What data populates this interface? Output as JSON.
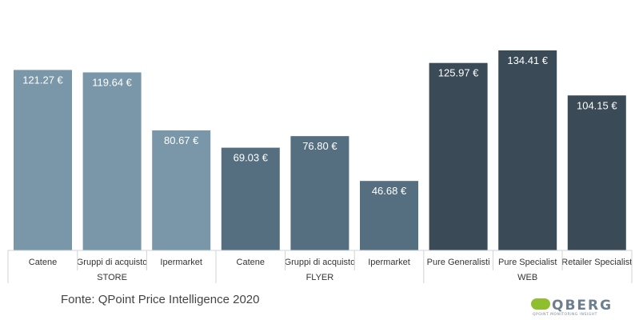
{
  "chart_data": {
    "type": "bar",
    "groups": [
      {
        "name": "STORE",
        "color": "#7a97a9",
        "categories": [
          "Catene",
          "Gruppi di acquisto",
          "Ipermarket"
        ],
        "values": [
          121.27,
          119.64,
          80.67
        ],
        "labels": [
          "121.27 €",
          "119.64 €",
          "80.67 €"
        ]
      },
      {
        "name": "FLYER",
        "color": "#566f80",
        "categories": [
          "Catene",
          "Gruppi di acquisto",
          "Ipermarket"
        ],
        "values": [
          69.03,
          76.8,
          46.68
        ],
        "labels": [
          "69.03 €",
          "76.80 €",
          "46.68 €"
        ]
      },
      {
        "name": "WEB",
        "color": "#3a4a56",
        "categories": [
          "Pure Generalisti",
          "Pure Specialist",
          "Retailer Specialist"
        ],
        "values": [
          125.97,
          134.41,
          104.15
        ],
        "labels": [
          "125.97 €",
          "134.41 €",
          "104.15 €"
        ]
      }
    ],
    "ylim": [
      0,
      150
    ],
    "grid": false,
    "legend": "none",
    "title": "",
    "xlabel": "",
    "ylabel": ""
  },
  "source": "Fonte: QPoint Price Intelligence 2020",
  "logo": {
    "text": "QBERG",
    "tagline": "QPOINT MONITORING INSIGHT",
    "accent_color": "#8fbf2e"
  }
}
